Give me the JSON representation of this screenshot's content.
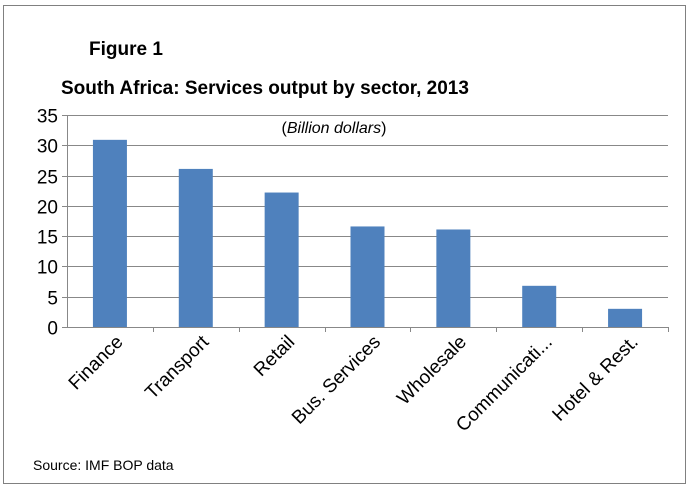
{
  "figure_label": "Figure 1",
  "unit_note": {
    "open": "(",
    "text": "Billion dollars",
    "close": ")"
  },
  "source": "Source: IMF BOP data",
  "colors": {
    "bar": "#4f81bd",
    "gridline": "#888888",
    "axis": "#888888",
    "text": "#000000"
  },
  "chart_data": {
    "type": "bar",
    "title": "South Africa: Services output by sector, 2013",
    "xlabel": "",
    "ylabel": "",
    "categories": [
      "Finance",
      "Transport",
      "Retail",
      "Bus. Services",
      "Wholesale",
      "Communicati...",
      "Hotel & Rest."
    ],
    "values": [
      30.9,
      26.1,
      22.2,
      16.6,
      16.1,
      6.8,
      3.0
    ],
    "ylim": [
      0,
      35
    ],
    "yticks": [
      0,
      5,
      10,
      15,
      20,
      25,
      30,
      35
    ],
    "grid": true,
    "legend": "none"
  }
}
